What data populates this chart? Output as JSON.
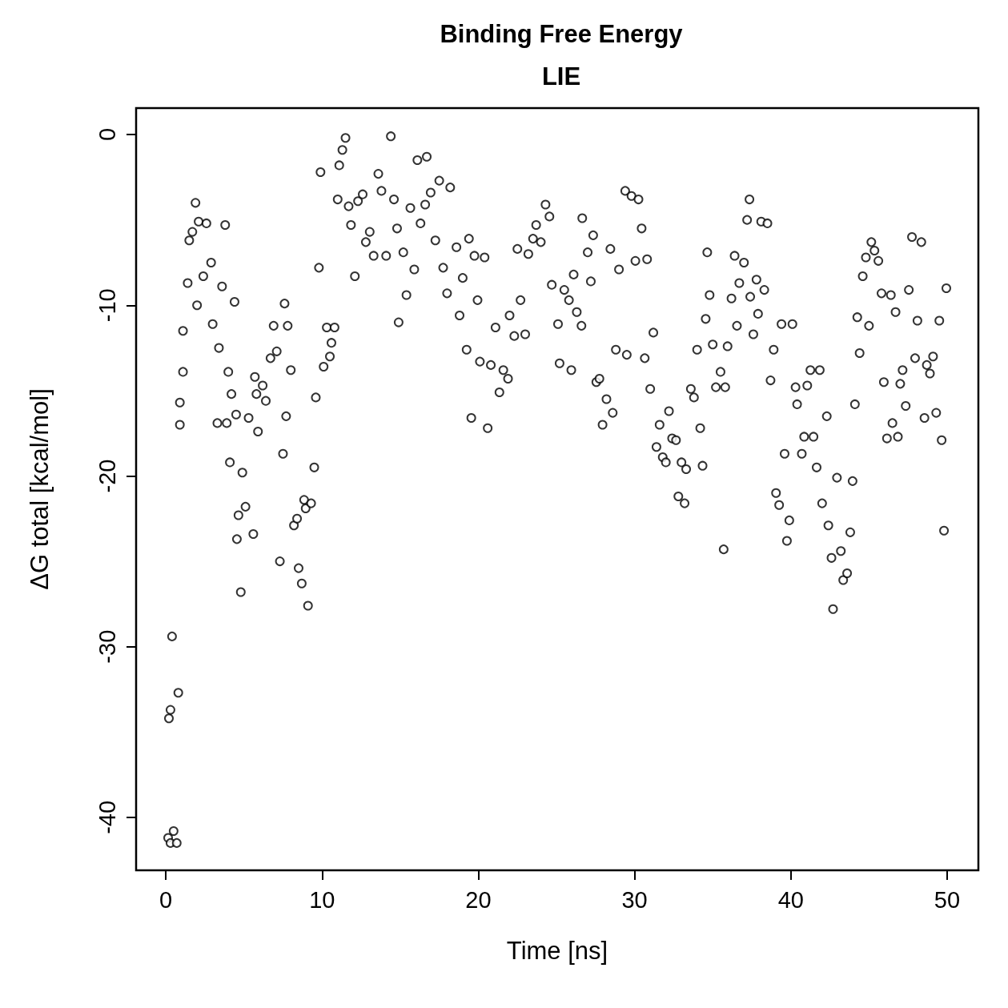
{
  "chart_data": {
    "type": "scatter",
    "title": "Binding Free Energy",
    "subtitle": "LIE",
    "xlabel": "Time [ns]",
    "ylabel": "ΔG total [kcal/mol]",
    "xlim": [
      -1.9,
      52
    ],
    "xticks": [
      0,
      10,
      20,
      30,
      40,
      50
    ],
    "ylim": [
      -43.1,
      1.55
    ],
    "yticks": [
      -40,
      -30,
      -20,
      -10,
      0
    ],
    "grid": false,
    "marker": "circle",
    "series": [
      {
        "color": "#000000",
        "x": [
          0.15,
          0.3,
          0.7,
          0.5,
          0.2,
          0.3,
          0.4,
          0.8,
          0.9,
          0.9,
          1.1,
          1.1,
          1.4,
          1.5,
          1.7,
          1.9,
          2.0,
          2.1,
          2.4,
          2.6,
          2.9,
          3.0,
          3.3,
          3.4,
          3.6,
          3.8,
          3.9,
          4.0,
          4.1,
          4.2,
          4.4,
          4.5,
          4.55,
          4.65,
          4.8,
          4.9,
          5.1,
          5.3,
          5.6,
          5.7,
          5.8,
          5.9,
          6.2,
          6.4,
          6.7,
          6.9,
          7.1,
          7.3,
          7.5,
          7.6,
          7.7,
          7.8,
          8.0,
          8.2,
          8.4,
          8.5,
          8.7,
          8.85,
          8.95,
          9.1,
          9.3,
          9.5,
          9.6,
          9.8,
          9.9,
          10.1,
          10.3,
          10.5,
          10.6,
          10.8,
          11.0,
          11.1,
          11.3,
          11.5,
          11.7,
          11.85,
          12.1,
          12.3,
          12.6,
          12.8,
          13.05,
          13.3,
          13.6,
          13.8,
          14.1,
          14.4,
          14.6,
          14.8,
          14.9,
          15.2,
          15.4,
          15.65,
          15.9,
          16.1,
          16.3,
          16.6,
          16.7,
          16.95,
          17.25,
          17.5,
          17.75,
          18.0,
          18.2,
          18.6,
          18.8,
          19.0,
          19.25,
          19.4,
          19.55,
          19.75,
          19.95,
          20.1,
          20.4,
          20.6,
          20.8,
          21.1,
          21.35,
          21.6,
          21.9,
          22.0,
          22.3,
          22.5,
          22.7,
          23.0,
          23.2,
          23.5,
          23.7,
          24.0,
          24.3,
          24.55,
          24.7,
          25.1,
          25.2,
          25.5,
          25.8,
          25.95,
          26.1,
          26.3,
          26.6,
          26.65,
          27.0,
          27.2,
          27.35,
          27.55,
          27.75,
          27.95,
          28.2,
          28.45,
          28.6,
          28.8,
          29.0,
          29.4,
          29.5,
          29.8,
          30.05,
          30.25,
          30.45,
          30.65,
          30.8,
          31.0,
          31.2,
          31.4,
          31.6,
          31.8,
          32.0,
          32.2,
          32.4,
          32.65,
          32.8,
          33.0,
          33.2,
          33.3,
          33.6,
          33.8,
          34.0,
          34.2,
          34.35,
          34.55,
          34.65,
          34.8,
          35.0,
          35.2,
          35.5,
          35.7,
          35.8,
          35.95,
          36.2,
          36.4,
          36.55,
          36.7,
          37.0,
          37.2,
          37.35,
          37.4,
          37.6,
          37.8,
          37.9,
          38.1,
          38.3,
          38.5,
          38.7,
          38.9,
          39.05,
          39.25,
          39.4,
          39.6,
          39.75,
          39.9,
          40.1,
          40.3,
          40.4,
          40.7,
          40.85,
          41.05,
          41.25,
          41.45,
          41.65,
          41.85,
          42.0,
          42.3,
          42.4,
          42.6,
          42.7,
          42.95,
          43.2,
          43.35,
          43.6,
          43.8,
          43.95,
          44.1,
          44.25,
          44.4,
          44.6,
          44.8,
          45.0,
          45.15,
          45.35,
          45.6,
          45.8,
          45.95,
          46.15,
          46.4,
          46.5,
          46.7,
          46.85,
          47.0,
          47.15,
          47.35,
          47.55,
          47.75,
          47.95,
          48.1,
          48.35,
          48.55,
          48.7,
          48.9,
          49.1,
          49.3,
          49.5,
          49.65,
          49.8,
          49.95
        ],
        "values": [
          -41.2,
          -41.5,
          -41.5,
          -40.8,
          -34.2,
          -33.7,
          -29.4,
          -32.7,
          -17.0,
          -15.7,
          -11.5,
          -13.9,
          -8.7,
          -6.2,
          -5.7,
          -4.0,
          -10.0,
          -5.1,
          -8.3,
          -5.2,
          -7.5,
          -11.1,
          -16.9,
          -12.5,
          -8.9,
          -5.3,
          -16.9,
          -13.9,
          -19.2,
          -15.2,
          -9.8,
          -16.4,
          -23.7,
          -22.3,
          -26.8,
          -19.8,
          -21.8,
          -16.6,
          -23.4,
          -14.2,
          -15.2,
          -17.4,
          -14.7,
          -15.6,
          -13.1,
          -11.2,
          -12.7,
          -25.0,
          -18.7,
          -9.9,
          -16.5,
          -11.2,
          -13.8,
          -22.9,
          -22.5,
          -25.4,
          -26.3,
          -21.4,
          -21.9,
          -27.6,
          -21.6,
          -19.5,
          -15.4,
          -7.8,
          -2.2,
          -13.6,
          -11.3,
          -13.0,
          -12.2,
          -11.3,
          -3.8,
          -1.8,
          -0.9,
          -0.2,
          -4.2,
          -5.3,
          -8.3,
          -3.9,
          -3.5,
          -6.3,
          -5.7,
          -7.1,
          -2.3,
          -3.3,
          -7.1,
          -0.1,
          -3.8,
          -5.5,
          -11.0,
          -6.9,
          -9.4,
          -4.3,
          -7.9,
          -1.5,
          -5.2,
          -4.1,
          -1.3,
          -3.4,
          -6.2,
          -2.7,
          -7.8,
          -9.3,
          -3.1,
          -6.6,
          -10.6,
          -8.4,
          -12.6,
          -6.1,
          -16.6,
          -7.1,
          -9.7,
          -13.3,
          -7.2,
          -17.2,
          -13.5,
          -11.3,
          -15.1,
          -13.8,
          -14.3,
          -10.6,
          -11.8,
          -6.7,
          -9.7,
          -11.7,
          -7.0,
          -6.1,
          -5.3,
          -6.3,
          -4.1,
          -4.8,
          -8.8,
          -11.1,
          -13.4,
          -9.1,
          -9.7,
          -13.8,
          -8.2,
          -10.4,
          -11.2,
          -4.9,
          -6.9,
          -8.6,
          -5.9,
          -14.5,
          -14.3,
          -17.0,
          -15.5,
          -6.7,
          -16.3,
          -12.6,
          -7.9,
          -3.3,
          -12.9,
          -3.6,
          -7.4,
          -3.8,
          -5.5,
          -13.1,
          -7.3,
          -14.9,
          -11.6,
          -18.3,
          -17.0,
          -18.9,
          -19.2,
          -16.2,
          -17.8,
          -17.9,
          -21.2,
          -19.2,
          -21.6,
          -19.6,
          -14.9,
          -15.4,
          -12.6,
          -17.2,
          -19.4,
          -10.8,
          -6.9,
          -9.4,
          -12.3,
          -14.8,
          -13.9,
          -24.3,
          -14.8,
          -12.4,
          -9.6,
          -7.1,
          -11.2,
          -8.7,
          -7.5,
          -5.0,
          -3.8,
          -9.5,
          -11.7,
          -8.5,
          -10.5,
          -5.1,
          -9.1,
          -5.2,
          -14.4,
          -12.6,
          -21.0,
          -21.7,
          -11.1,
          -18.7,
          -23.8,
          -22.6,
          -11.1,
          -14.8,
          -15.8,
          -18.7,
          -17.7,
          -14.7,
          -13.8,
          -17.7,
          -19.5,
          -13.8,
          -21.6,
          -16.5,
          -22.9,
          -24.8,
          -27.8,
          -20.1,
          -24.4,
          -26.1,
          -25.7,
          -23.3,
          -20.3,
          -15.8,
          -10.7,
          -12.8,
          -8.3,
          -7.2,
          -11.2,
          -6.3,
          -6.8,
          -7.4,
          -9.3,
          -14.5,
          -17.8,
          -9.4,
          -16.9,
          -10.4,
          -17.7,
          -14.6,
          -13.8,
          -15.9,
          -9.1,
          -6.0,
          -13.1,
          -10.9,
          -6.3,
          -16.6,
          -13.5,
          -14.0,
          -13.0,
          -16.3,
          -10.9,
          -17.9,
          -23.2,
          -9.0
        ]
      }
    ]
  }
}
